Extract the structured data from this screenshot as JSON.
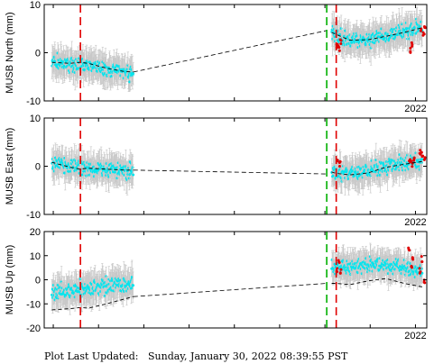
{
  "footer": {
    "label": "Plot Last Updated:",
    "timestamp": "Sunday, January 30, 2022 08:39:55 PST"
  },
  "colors": {
    "obs": "#00e5ee",
    "obs_recent": "#e00000",
    "errorbar": "#c8c8c8",
    "model": "#000000",
    "event_red": "#e00000",
    "event_green": "#00b000"
  },
  "chart_data": [
    {
      "type": "scatter",
      "station": "MUSB",
      "component": "North",
      "ylabel": "MUSB North (mm)",
      "ylim": [
        -10,
        10
      ],
      "yticks": [
        -10,
        0,
        10
      ],
      "year_label": "2022",
      "grid": false,
      "x_domain": [
        2013.8,
        2022.25
      ],
      "event_lines": [
        {
          "t": 2014.6,
          "color": "red"
        },
        {
          "t": 2020.04,
          "color": "green"
        },
        {
          "t": 2020.25,
          "color": "red"
        }
      ],
      "segments": [
        {
          "t_start": 2013.97,
          "t_end": 2015.77,
          "obs_points": [
            [
              2013.97,
              -2.0
            ],
            [
              2014.37,
              -2.5
            ],
            [
              2014.77,
              -2.5
            ],
            [
              2015.17,
              -3.5
            ],
            [
              2015.57,
              -4.0
            ],
            [
              2015.77,
              -4.3
            ]
          ],
          "model_points": [
            [
              2013.97,
              -2.0
            ],
            [
              2014.37,
              -2.2
            ],
            [
              2014.6,
              -2.0
            ],
            [
              2014.77,
              -2.2
            ],
            [
              2015.17,
              -3.2
            ],
            [
              2015.57,
              -3.9
            ],
            [
              2015.77,
              -4.0
            ]
          ]
        },
        {
          "t_start": 2020.15,
          "t_end": 2022.15,
          "obs_points": [
            [
              2020.15,
              4.0
            ],
            [
              2020.55,
              2.5
            ],
            [
              2020.95,
              2.8
            ],
            [
              2021.35,
              3.5
            ],
            [
              2021.75,
              4.5
            ],
            [
              2022.15,
              5.0
            ]
          ],
          "model_points": [
            [
              2020.15,
              4.2
            ],
            [
              2020.25,
              3.8
            ],
            [
              2020.55,
              2.6
            ],
            [
              2020.95,
              2.7
            ],
            [
              2021.35,
              3.4
            ],
            [
              2021.75,
              4.2
            ],
            [
              2022.15,
              5.2
            ]
          ]
        }
      ],
      "model_bridge": [
        [
          2015.77,
          -4.0
        ],
        [
          2020.04,
          4.6
        ]
      ],
      "recent_points": [
        [
          2020.27,
          1.5
        ],
        [
          2020.31,
          0.8
        ],
        [
          2020.35,
          2.0
        ],
        [
          2021.88,
          0.6
        ],
        [
          2021.93,
          1.8
        ],
        [
          2022.12,
          4.5
        ],
        [
          2022.18,
          3.8
        ],
        [
          2022.21,
          5.4
        ]
      ]
    },
    {
      "type": "scatter",
      "station": "MUSB",
      "component": "East",
      "ylabel": "MUSB East (mm)",
      "ylim": [
        -10,
        10
      ],
      "yticks": [
        -10,
        0,
        10
      ],
      "year_label": "2022",
      "grid": false,
      "x_domain": [
        2013.8,
        2022.25
      ],
      "event_lines": [
        {
          "t": 2014.6,
          "color": "red"
        },
        {
          "t": 2020.04,
          "color": "green"
        },
        {
          "t": 2020.25,
          "color": "red"
        }
      ],
      "segments": [
        {
          "t_start": 2013.97,
          "t_end": 2015.77,
          "obs_points": [
            [
              2013.97,
              0.6
            ],
            [
              2014.37,
              0.0
            ],
            [
              2014.77,
              -0.5
            ],
            [
              2015.17,
              -0.7
            ],
            [
              2015.57,
              -0.8
            ],
            [
              2015.77,
              -0.8
            ]
          ],
          "model_points": [
            [
              2013.97,
              0.8
            ],
            [
              2014.37,
              -0.2
            ],
            [
              2014.6,
              -0.6
            ],
            [
              2014.77,
              -0.4
            ],
            [
              2015.17,
              -0.6
            ],
            [
              2015.57,
              -0.8
            ],
            [
              2015.77,
              -0.8
            ]
          ]
        },
        {
          "t_start": 2020.15,
          "t_end": 2022.15,
          "obs_points": [
            [
              2020.15,
              -1.3
            ],
            [
              2020.55,
              -1.5
            ],
            [
              2020.95,
              -1.0
            ],
            [
              2021.35,
              0.0
            ],
            [
              2021.75,
              0.5
            ],
            [
              2022.15,
              1.0
            ]
          ],
          "model_points": [
            [
              2020.15,
              -1.2
            ],
            [
              2020.25,
              -1.5
            ],
            [
              2020.55,
              -1.8
            ],
            [
              2020.95,
              -1.4
            ],
            [
              2021.35,
              -0.2
            ],
            [
              2021.75,
              0.4
            ],
            [
              2022.15,
              1.0
            ]
          ]
        }
      ],
      "model_bridge": [
        [
          2015.77,
          -0.8
        ],
        [
          2020.04,
          -1.6
        ]
      ],
      "recent_points": [
        [
          2020.28,
          1.0
        ],
        [
          2020.33,
          0.4
        ],
        [
          2021.87,
          1.2
        ],
        [
          2021.92,
          0.3
        ],
        [
          2021.97,
          1.6
        ],
        [
          2022.1,
          3.0
        ],
        [
          2022.15,
          2.3
        ],
        [
          2022.2,
          1.8
        ]
      ]
    },
    {
      "type": "scatter",
      "station": "MUSB",
      "component": "Up",
      "ylabel": "MUSB Up (mm)",
      "ylim": [
        -20,
        20
      ],
      "yticks": [
        -20,
        -10,
        0,
        10,
        20
      ],
      "year_label": "2022",
      "grid": false,
      "x_domain": [
        2013.8,
        2022.25
      ],
      "event_lines": [
        {
          "t": 2014.6,
          "color": "red"
        },
        {
          "t": 2020.04,
          "color": "green"
        },
        {
          "t": 2020.25,
          "color": "red"
        }
      ],
      "segments": [
        {
          "t_start": 2013.97,
          "t_end": 2015.77,
          "obs_points": [
            [
              2013.97,
              -5.0
            ],
            [
              2014.37,
              -5.0
            ],
            [
              2014.77,
              -4.0
            ],
            [
              2015.17,
              -3.0
            ],
            [
              2015.57,
              -2.0
            ],
            [
              2015.77,
              -1.5
            ]
          ],
          "model_points": [
            [
              2013.97,
              -12.5
            ],
            [
              2014.37,
              -12.0
            ],
            [
              2014.6,
              -11.5
            ],
            [
              2014.77,
              -11.8
            ],
            [
              2015.17,
              -10.0
            ],
            [
              2015.57,
              -8.0
            ],
            [
              2015.77,
              -7.0
            ]
          ]
        },
        {
          "t_start": 2020.15,
          "t_end": 2022.15,
          "obs_points": [
            [
              2020.15,
              5.0
            ],
            [
              2020.55,
              5.0
            ],
            [
              2020.95,
              6.0
            ],
            [
              2021.35,
              6.0
            ],
            [
              2021.75,
              5.0
            ],
            [
              2022.15,
              4.0
            ]
          ],
          "model_points": [
            [
              2020.15,
              -1.5
            ],
            [
              2020.25,
              -1.5
            ],
            [
              2020.55,
              -2.0
            ],
            [
              2020.95,
              -0.5
            ],
            [
              2021.35,
              0.5
            ],
            [
              2021.75,
              -1.5
            ],
            [
              2022.15,
              -3.0
            ]
          ]
        }
      ],
      "model_bridge": [
        [
          2015.77,
          -7.0
        ],
        [
          2020.04,
          -1.5
        ]
      ],
      "recent_points": [
        [
          2020.26,
          4.0
        ],
        [
          2020.31,
          8.0
        ],
        [
          2020.34,
          3.0
        ],
        [
          2021.86,
          12.0
        ],
        [
          2021.91,
          6.0
        ],
        [
          2021.95,
          9.0
        ],
        [
          2022.1,
          3.0
        ],
        [
          2022.15,
          8.0
        ],
        [
          2022.19,
          -1.0
        ]
      ]
    }
  ]
}
